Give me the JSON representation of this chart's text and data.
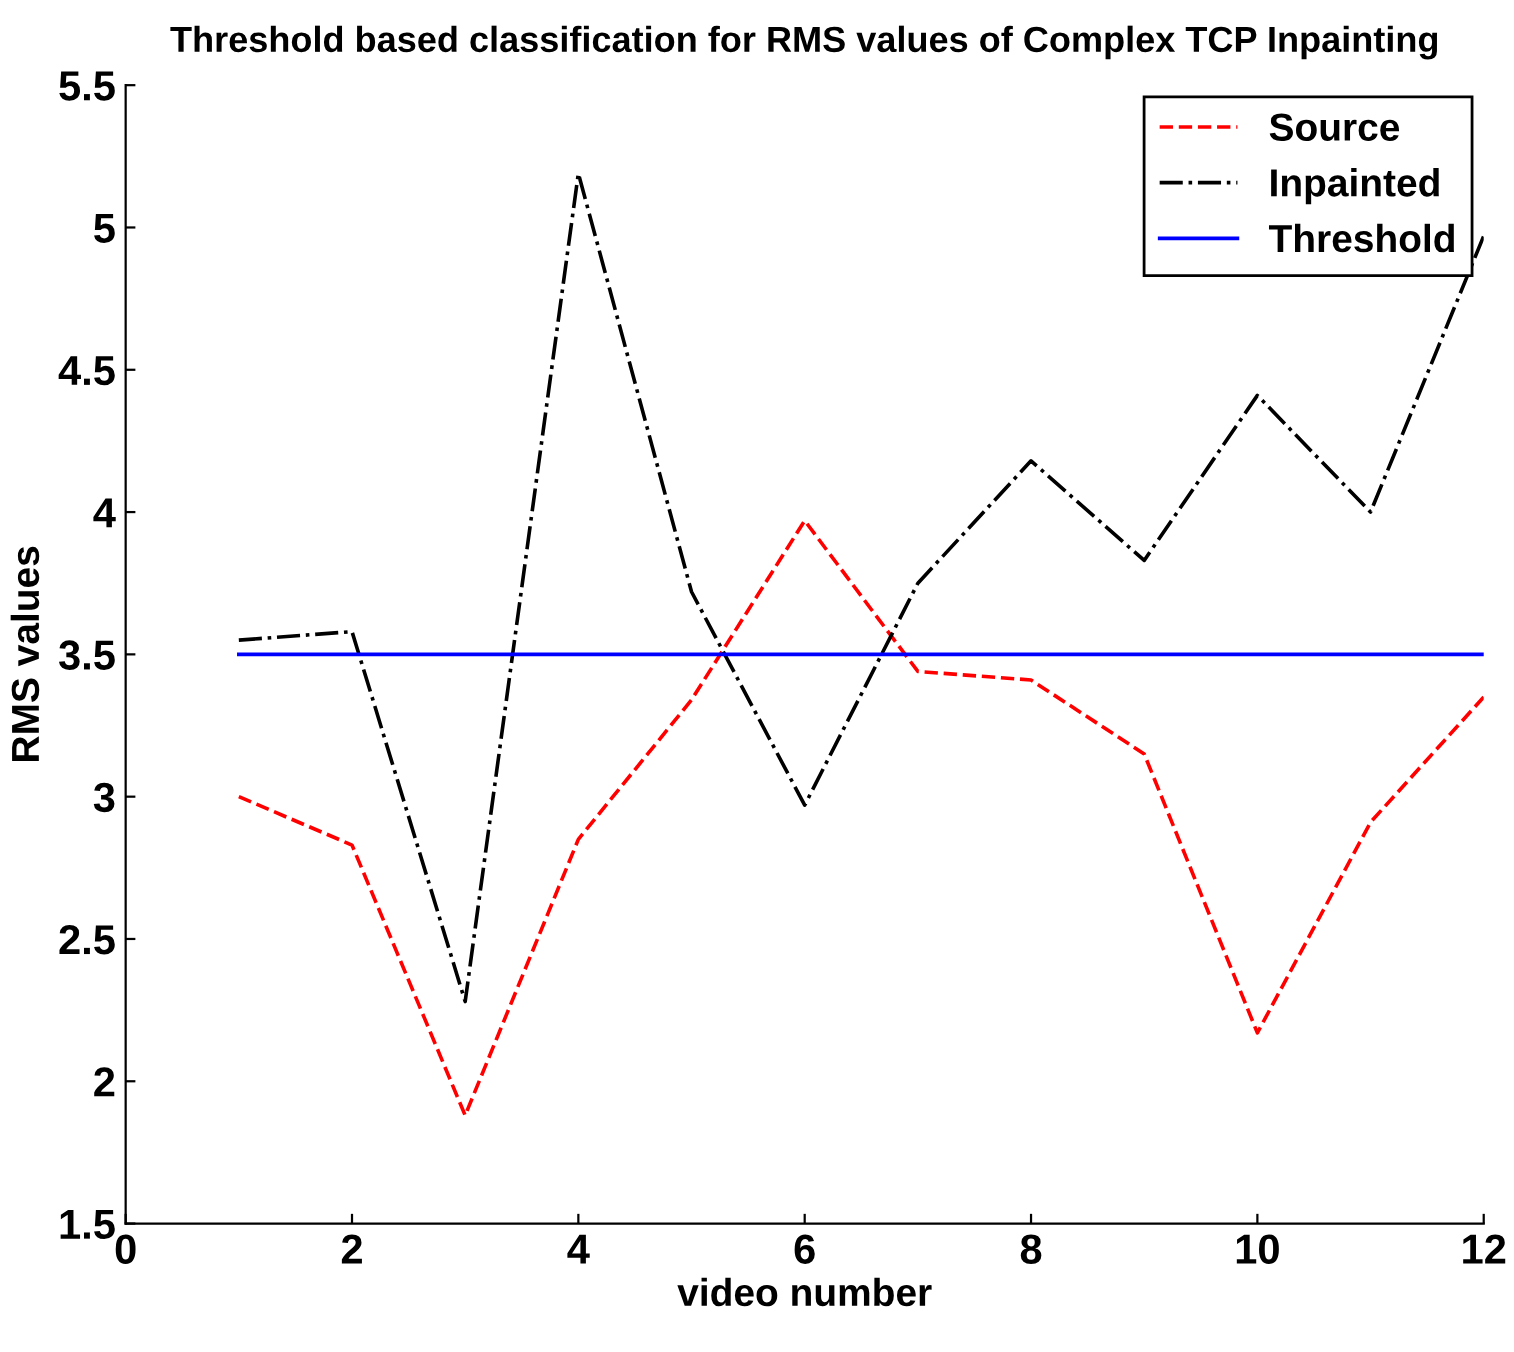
{
  "chart_data": {
    "type": "line",
    "title": "Threshold based classification for RMS values of Complex TCP Inpainting",
    "xlabel": "video number",
    "ylabel": "RMS values",
    "x": [
      1,
      2,
      3,
      4,
      5,
      6,
      7,
      8,
      9,
      10,
      11,
      12
    ],
    "series": [
      {
        "name": "Source",
        "color": "#ff0000",
        "line_style": "dashed",
        "values": [
          3.0,
          2.83,
          1.88,
          2.85,
          3.34,
          3.97,
          3.44,
          3.41,
          3.15,
          2.17,
          2.91,
          3.35
        ]
      },
      {
        "name": "Inpainted",
        "color": "#000000",
        "line_style": "dashdot",
        "values": [
          3.55,
          3.58,
          2.28,
          5.19,
          3.72,
          2.97,
          3.75,
          4.18,
          3.83,
          4.41,
          4.0,
          4.97
        ]
      },
      {
        "name": "Threshold",
        "color": "#0000ff",
        "line_style": "solid",
        "values": [
          3.5,
          3.5,
          3.5,
          3.5,
          3.5,
          3.5,
          3.5,
          3.5,
          3.5,
          3.5,
          3.5,
          3.5
        ]
      }
    ],
    "xlim": [
      0,
      12
    ],
    "xticks": [
      0,
      2,
      4,
      6,
      8,
      10,
      12
    ],
    "ylim": [
      1.5,
      5.5
    ],
    "yticks": [
      1.5,
      2,
      2.5,
      3,
      3.5,
      4,
      4.5,
      5,
      5.5
    ],
    "grid": false,
    "legend": "top right",
    "marker": "none"
  }
}
